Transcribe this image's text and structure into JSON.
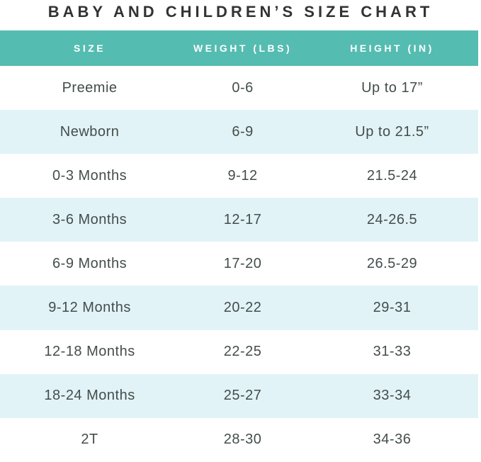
{
  "title": "BABY AND CHILDREN’S SIZE CHART",
  "colors": {
    "header_bg": "#55bcb2",
    "header_text": "#ffffff",
    "row_alt_bg": "#e2f3f7",
    "row_bg": "#ffffff",
    "cell_text": "#434d4c",
    "title_text": "#333333"
  },
  "chart_data": {
    "type": "table",
    "title": "BABY AND CHILDREN’S SIZE CHART",
    "columns": [
      "SIZE",
      "WEIGHT (LBS)",
      "HEIGHT (IN)"
    ],
    "rows": [
      [
        "Preemie",
        "0-6",
        "Up to 17”"
      ],
      [
        "Newborn",
        "6-9",
        "Up to 21.5”"
      ],
      [
        "0-3 Months",
        "9-12",
        "21.5-24"
      ],
      [
        "3-6 Months",
        "12-17",
        "24-26.5"
      ],
      [
        "6-9 Months",
        "17-20",
        "26.5-29"
      ],
      [
        "9-12 Months",
        "20-22",
        "29-31"
      ],
      [
        "12-18 Months",
        "22-25",
        "31-33"
      ],
      [
        "18-24 Months",
        "25-27",
        "33-34"
      ],
      [
        "2T",
        "28-30",
        "34-36"
      ]
    ],
    "layout": {
      "row_striping": "odd rows pale cyan, even rows white",
      "grid": false,
      "legend": "none"
    }
  }
}
